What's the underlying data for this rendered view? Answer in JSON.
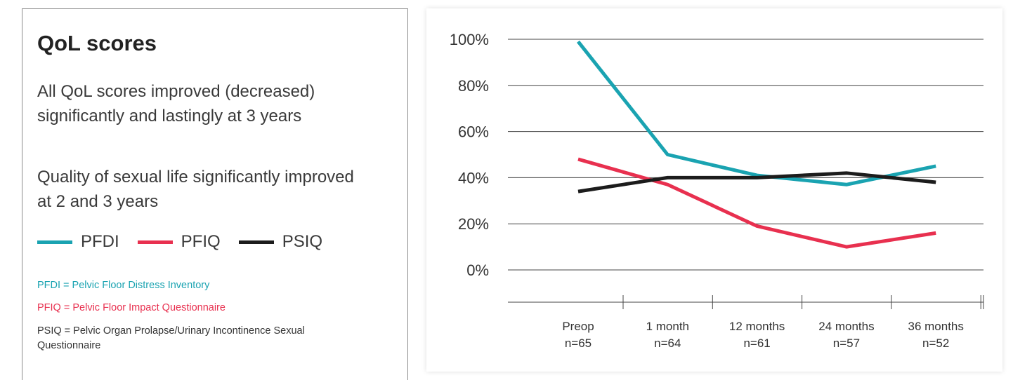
{
  "info": {
    "title": "QoL scores",
    "bullet1": "All QoL scores improved (decreased) significantly and lastingly at 3 years",
    "bullet2": "Quality of sexual life significantly improved at 2 and 3 years",
    "legend": [
      {
        "label": "PFDI",
        "color": "#1aa3b1"
      },
      {
        "label": "PFIQ",
        "color": "#e8304f"
      },
      {
        "label": "PSIQ",
        "color": "#1c1c1c"
      }
    ],
    "definitions": [
      {
        "text": "PFDI = Pelvic Floor Distress Inventory",
        "color": "#1aa3b1"
      },
      {
        "text": "PFIQ = Pelvic Floor Impact Questionnaire",
        "color": "#e8304f"
      },
      {
        "text": "PSIQ = Pelvic Organ Prolapse/Urinary Incontinence Sexual Questionnaire",
        "color": "#333333"
      }
    ]
  },
  "chart_data": {
    "type": "line",
    "categories": [
      "Preop",
      "1 month",
      "12 months",
      "24 months",
      "36 months"
    ],
    "category_n": [
      "n=65",
      "n=64",
      "n=61",
      "n=57",
      "n=52"
    ],
    "ylim": [
      0,
      100
    ],
    "yticks": [
      0,
      20,
      40,
      60,
      80,
      100
    ],
    "ytick_labels": [
      "0%",
      "20%",
      "40%",
      "60%",
      "80%",
      "100%"
    ],
    "grid": true,
    "series": [
      {
        "name": "PFDI",
        "color": "#1aa3b1",
        "values": [
          99,
          50,
          41,
          37,
          45
        ]
      },
      {
        "name": "PFIQ",
        "color": "#e8304f",
        "values": [
          48,
          37,
          19,
          10,
          16
        ]
      },
      {
        "name": "PSIQ",
        "color": "#1c1c1c",
        "values": [
          34,
          40,
          40,
          42,
          38
        ]
      }
    ]
  }
}
